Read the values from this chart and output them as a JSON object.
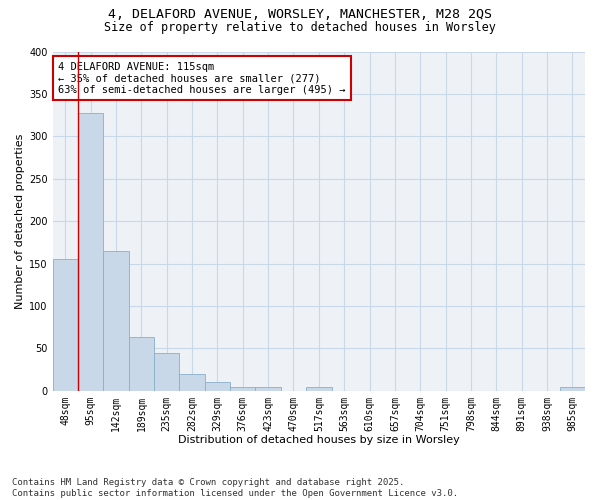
{
  "title_line1": "4, DELAFORD AVENUE, WORSLEY, MANCHESTER, M28 2QS",
  "title_line2": "Size of property relative to detached houses in Worsley",
  "xlabel": "Distribution of detached houses by size in Worsley",
  "ylabel": "Number of detached properties",
  "categories": [
    "48sqm",
    "95sqm",
    "142sqm",
    "189sqm",
    "235sqm",
    "282sqm",
    "329sqm",
    "376sqm",
    "423sqm",
    "470sqm",
    "517sqm",
    "563sqm",
    "610sqm",
    "657sqm",
    "704sqm",
    "751sqm",
    "798sqm",
    "844sqm",
    "891sqm",
    "938sqm",
    "985sqm"
  ],
  "values": [
    155,
    328,
    165,
    63,
    44,
    20,
    10,
    4,
    4,
    0,
    4,
    0,
    0,
    0,
    0,
    0,
    0,
    0,
    0,
    0,
    4
  ],
  "bar_color": "#c8d8e8",
  "bar_edge_color": "#8aafc8",
  "grid_color": "#c8d8e8",
  "vline_color": "#cc0000",
  "annotation_text": "4 DELAFORD AVENUE: 115sqm\n← 35% of detached houses are smaller (277)\n63% of semi-detached houses are larger (495) →",
  "annotation_box_color": "#cc0000",
  "ylim": [
    0,
    400
  ],
  "yticks": [
    0,
    50,
    100,
    150,
    200,
    250,
    300,
    350,
    400
  ],
  "footnote_line1": "Contains HM Land Registry data © Crown copyright and database right 2025.",
  "footnote_line2": "Contains public sector information licensed under the Open Government Licence v3.0.",
  "bg_color": "#eef2f7",
  "title_fontsize": 9.5,
  "subtitle_fontsize": 8.5,
  "axis_label_fontsize": 8,
  "tick_fontsize": 7,
  "annotation_fontsize": 7.5,
  "footnote_fontsize": 6.5
}
